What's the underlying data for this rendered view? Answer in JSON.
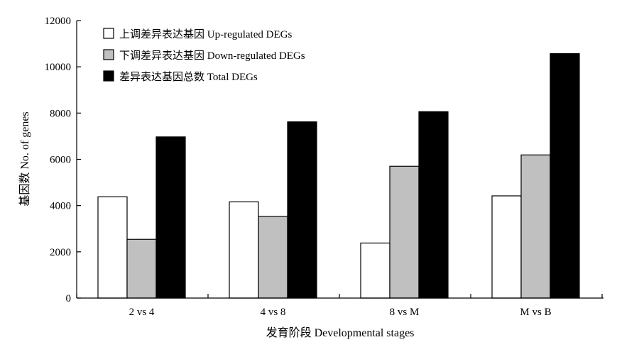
{
  "chart_data": {
    "type": "bar",
    "title": "",
    "xlabel": "发育阶段 Developmental stages",
    "ylabel": "基因数 No. of genes",
    "categories": [
      "2 vs 4",
      "4 vs 8",
      "8 vs M",
      "M vs B"
    ],
    "ylim": [
      0,
      12000
    ],
    "yticks": [
      0,
      2000,
      4000,
      6000,
      8000,
      10000,
      12000
    ],
    "grid": false,
    "legend_position": "top-left",
    "series": [
      {
        "name": "上调差异表达基因 Up-regulated DEGs",
        "color": "#ffffff",
        "values": [
          4380,
          4160,
          2380,
          4420
        ]
      },
      {
        "name": "下调差异表达基因 Down-regulated DEGs",
        "color": "#c0c0c0",
        "values": [
          2540,
          3530,
          5700,
          6190
        ]
      },
      {
        "name": "差异表达基因总数 Total DEGs",
        "color": "#000000",
        "values": [
          6970,
          7620,
          8060,
          10570
        ]
      }
    ]
  }
}
